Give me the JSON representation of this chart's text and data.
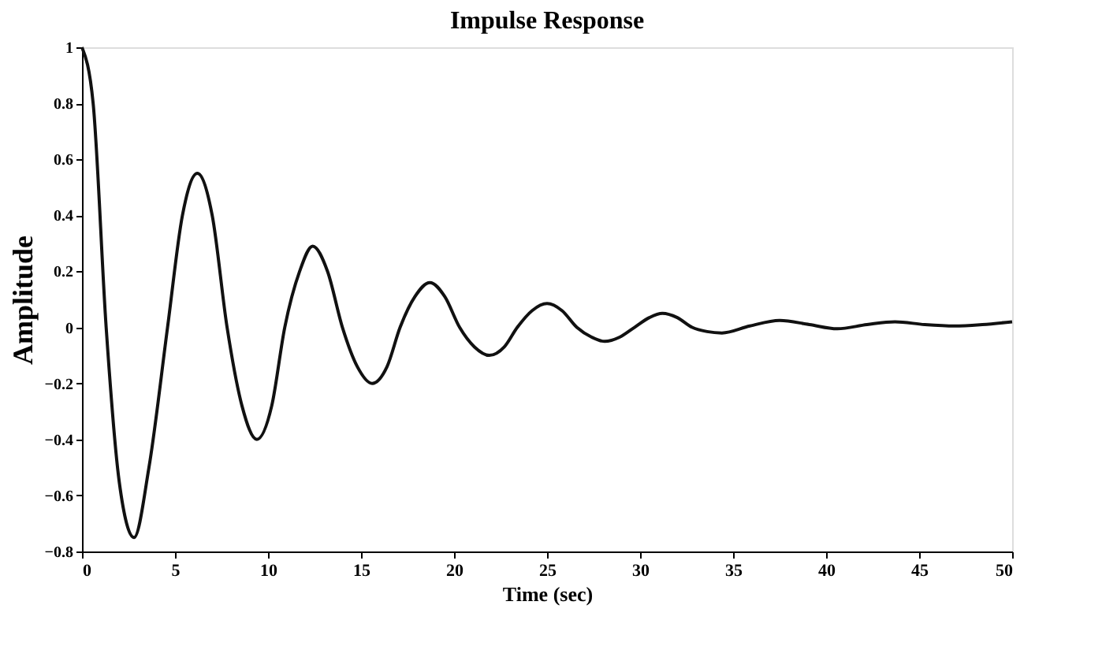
{
  "chart_data": {
    "type": "line",
    "title": "Impulse Response",
    "xlabel": "Time (sec)",
    "ylabel": "Amplitude",
    "xlim": [
      0,
      50
    ],
    "xticks": [
      0,
      5,
      10,
      15,
      20,
      25,
      30,
      35,
      40,
      45,
      50
    ],
    "ylim": [
      -0.8,
      1
    ],
    "yticks": [
      -0.8,
      -0.6,
      -0.4,
      -0.2,
      0,
      0.2,
      0.4,
      0.6,
      0.8,
      1
    ],
    "grid": false,
    "marker": "none",
    "line_style": "solid",
    "series": [
      {
        "color": "#111111",
        "x": [
          0,
          0.6,
          1.3,
          2.0,
          2.8,
          3.6,
          4.6,
          5.4,
          6.2,
          7.0,
          7.8,
          8.6,
          9.4,
          10.2,
          10.9,
          11.7,
          12.4,
          13.2,
          14.0,
          14.8,
          15.6,
          16.4,
          17.1,
          17.9,
          18.7,
          19.5,
          20.3,
          21.1,
          21.9,
          22.7,
          23.4,
          24.2,
          25.0,
          25.8,
          26.6,
          27.4,
          28.1,
          28.9,
          29.7,
          30.5,
          31.2,
          32.0,
          32.8,
          33.6,
          34.4,
          35.9,
          37.5,
          39.1,
          40.6,
          42.2,
          43.7,
          45.3,
          46.9,
          48.4,
          50
        ],
        "values": [
          1,
          0.8,
          0.0,
          -0.55,
          -0.75,
          -0.5,
          0.0,
          0.4,
          0.55,
          0.4,
          0.0,
          -0.28,
          -0.4,
          -0.28,
          0.0,
          0.2,
          0.29,
          0.2,
          0.0,
          -0.14,
          -0.2,
          -0.14,
          0.0,
          0.11,
          0.16,
          0.11,
          0.0,
          -0.07,
          -0.1,
          -0.07,
          0.0,
          0.06,
          0.085,
          0.06,
          0.0,
          -0.035,
          -0.05,
          -0.035,
          0.0,
          0.035,
          0.05,
          0.035,
          0.0,
          -0.015,
          -0.02,
          0.005,
          0.025,
          0.01,
          -0.005,
          0.01,
          0.02,
          0.01,
          0.005,
          0.01,
          0.02
        ]
      }
    ]
  }
}
